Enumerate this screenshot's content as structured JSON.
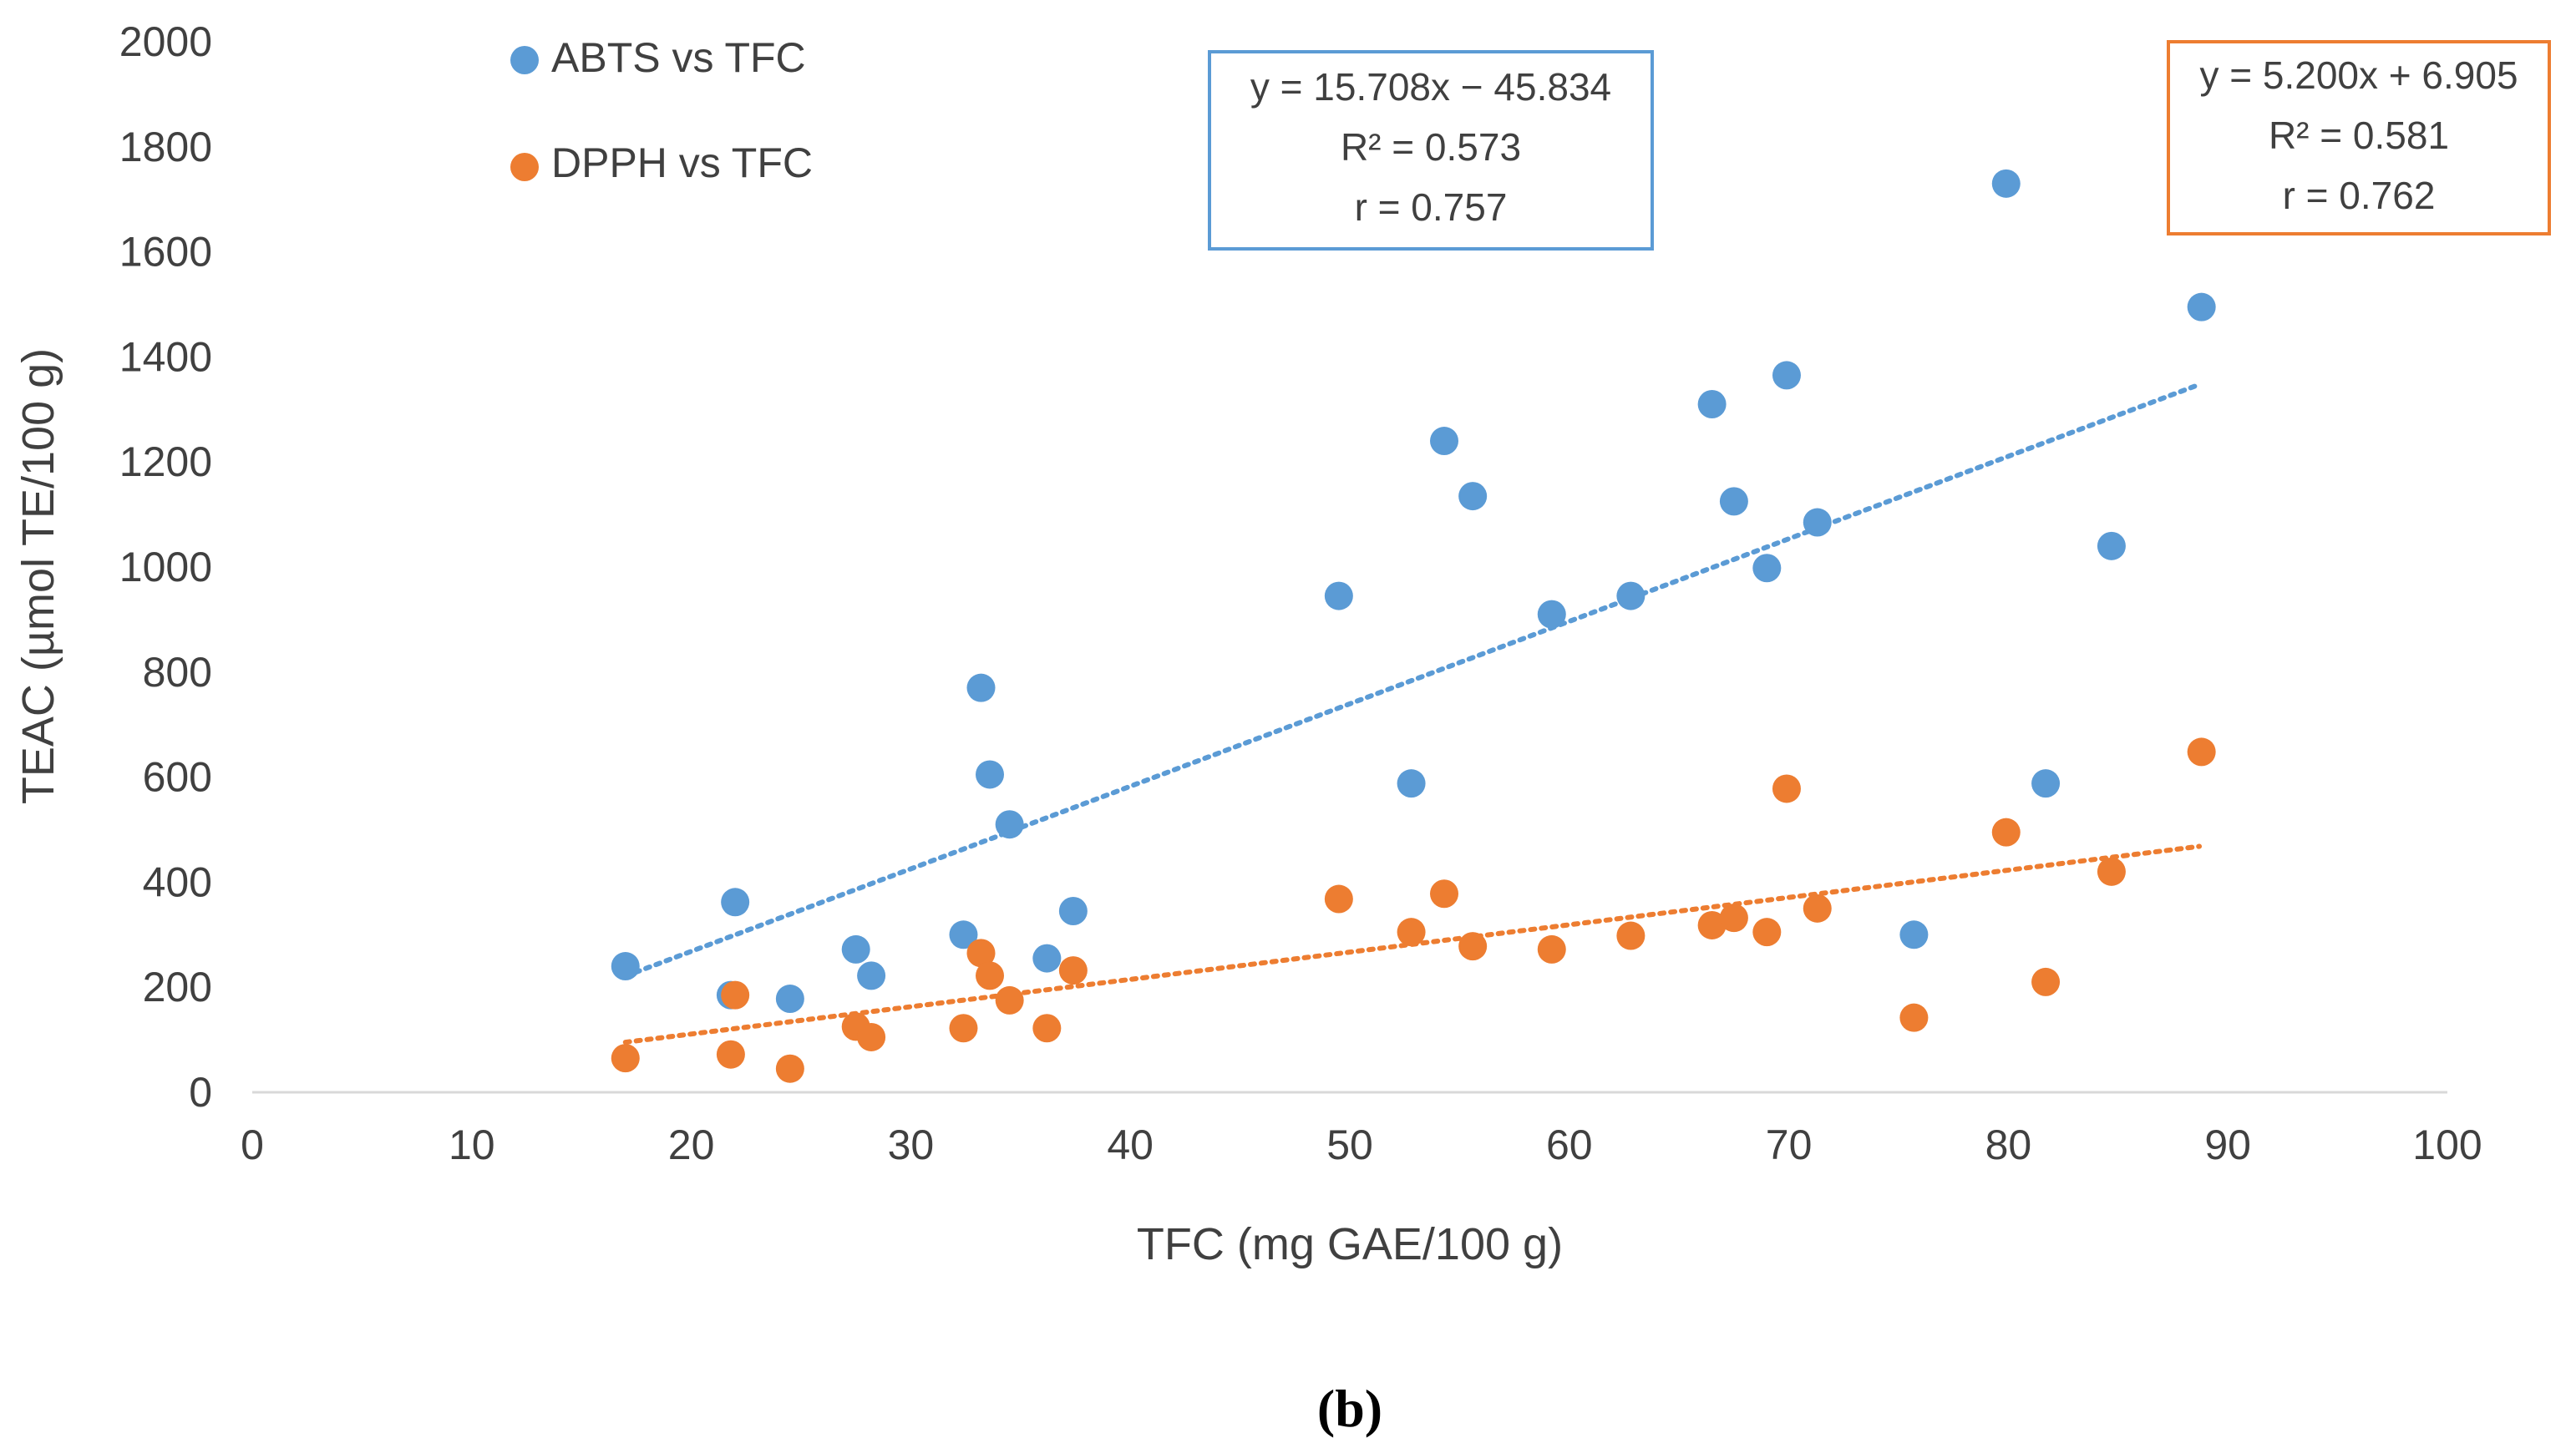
{
  "chart_data": {
    "type": "scatter",
    "xlabel": "TFC (mg GAE/100 g)",
    "ylabel": "TEAC (µmol TE/100 g)",
    "xlim": [
      0,
      100
    ],
    "ylim": [
      0,
      2000
    ],
    "x_ticks": [
      "0",
      "10",
      "20",
      "30",
      "40",
      "50",
      "60",
      "70",
      "80",
      "90",
      "100"
    ],
    "y_ticks": [
      "0",
      "200",
      "400",
      "600",
      "800",
      "1000",
      "1200",
      "1400",
      "1600",
      "1800",
      "2000"
    ],
    "grid": false,
    "legend_position": "top-left",
    "caption": "(b)",
    "series": [
      {
        "name": "ABTS vs TFC",
        "color": "#5B9BD5",
        "trendline": {
          "slope": 15.708,
          "intercept": -45.834,
          "x_range": [
            17,
            88.7
          ],
          "style": "dotted"
        },
        "equation": [
          "y = 15.708x − 45.834",
          "R² = 0.573",
          "r = 0.757"
        ],
        "points": [
          [
            17,
            240
          ],
          [
            21.8,
            185
          ],
          [
            22,
            362
          ],
          [
            24.5,
            178
          ],
          [
            27.5,
            272
          ],
          [
            28.2,
            222
          ],
          [
            32.4,
            300
          ],
          [
            33.2,
            770
          ],
          [
            33.6,
            605
          ],
          [
            34.5,
            510
          ],
          [
            36.2,
            255
          ],
          [
            37.4,
            345
          ],
          [
            49.5,
            945
          ],
          [
            52.8,
            588
          ],
          [
            54.3,
            1240
          ],
          [
            55.6,
            1135
          ],
          [
            59.2,
            910
          ],
          [
            62.8,
            945
          ],
          [
            66.5,
            1310
          ],
          [
            67.5,
            1125
          ],
          [
            69,
            998
          ],
          [
            69.9,
            1365
          ],
          [
            71.3,
            1085
          ],
          [
            75.7,
            300
          ],
          [
            79.9,
            1730
          ],
          [
            81.7,
            588
          ],
          [
            84.7,
            1040
          ],
          [
            88.8,
            1495
          ]
        ]
      },
      {
        "name": "DPPH vs TFC",
        "color": "#ED7D31",
        "trendline": {
          "slope": 5.2,
          "intercept": 6.905,
          "x_range": [
            17,
            88.7
          ],
          "style": "dotted"
        },
        "equation": [
          "y = 5.200x + 6.905",
          "R² = 0.581",
          "r = 0.762"
        ],
        "points": [
          [
            17,
            65
          ],
          [
            21.8,
            72
          ],
          [
            22,
            185
          ],
          [
            24.5,
            45
          ],
          [
            27.5,
            125
          ],
          [
            28.2,
            105
          ],
          [
            32.4,
            122
          ],
          [
            33.2,
            265
          ],
          [
            33.6,
            222
          ],
          [
            34.5,
            175
          ],
          [
            36.2,
            122
          ],
          [
            37.4,
            232
          ],
          [
            49.5,
            368
          ],
          [
            52.8,
            305
          ],
          [
            54.3,
            378
          ],
          [
            55.6,
            278
          ],
          [
            59.2,
            272
          ],
          [
            62.8,
            298
          ],
          [
            66.5,
            318
          ],
          [
            67.5,
            332
          ],
          [
            69,
            305
          ],
          [
            69.9,
            578
          ],
          [
            71.3,
            350
          ],
          [
            75.7,
            142
          ],
          [
            79.9,
            495
          ],
          [
            81.7,
            210
          ],
          [
            84.7,
            420
          ],
          [
            88.8,
            648
          ]
        ]
      }
    ]
  }
}
